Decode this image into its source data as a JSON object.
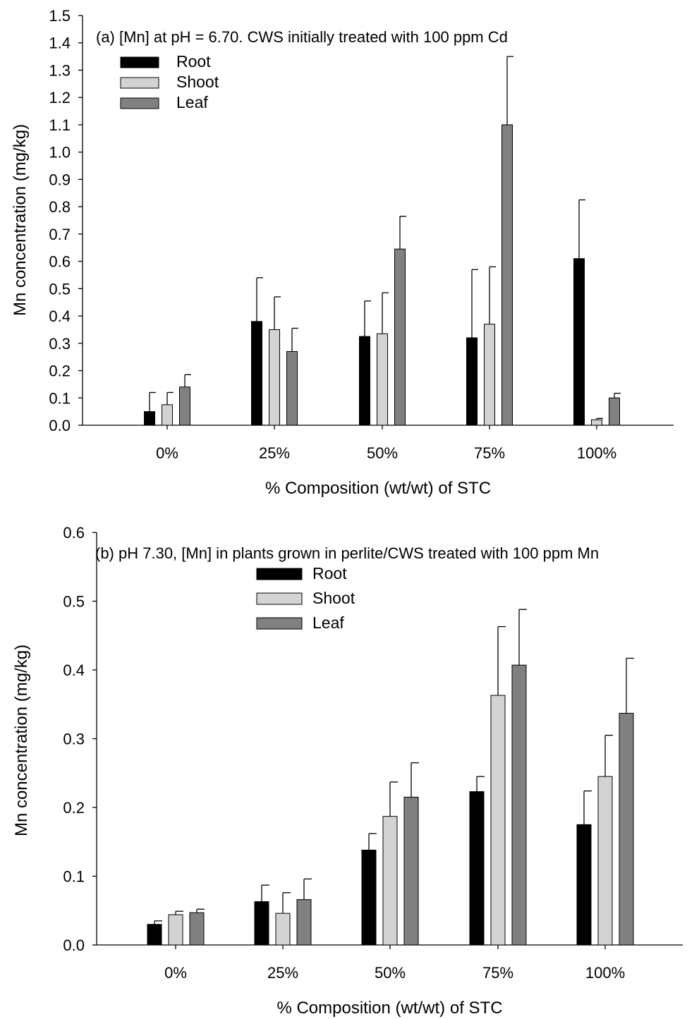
{
  "chart_data": [
    {
      "type": "bar",
      "title": "",
      "annotation": "(a) [Mn] at pH = 6.70. CWS initially treated with 100 ppm Cd",
      "xlabel": "% Composition (wt/wt) of STC",
      "ylabel": "Mn concentration (mg/kg)",
      "categories": [
        "0%",
        "25%",
        "50%",
        "75%",
        "100%"
      ],
      "ylim": [
        0,
        1.5
      ],
      "yticks": [
        "0.0",
        "0.1",
        "0.2",
        "0.3",
        "0.4",
        "0.5",
        "0.6",
        "0.7",
        "0.8",
        "0.9",
        "1.0",
        "1.1",
        "1.2",
        "1.3",
        "1.4",
        "1.5"
      ],
      "grid": false,
      "legend_position": "top-left",
      "series": [
        {
          "name": "Root",
          "color": "#000000",
          "values": [
            0.05,
            0.38,
            0.325,
            0.32,
            0.61
          ],
          "errors": [
            0.07,
            0.16,
            0.13,
            0.25,
            0.215
          ]
        },
        {
          "name": "Shoot",
          "color": "#d3d3d3",
          "values": [
            0.075,
            0.35,
            0.335,
            0.37,
            0.02
          ],
          "errors": [
            0.045,
            0.12,
            0.15,
            0.21,
            0.005
          ]
        },
        {
          "name": "Leaf",
          "color": "#808080",
          "values": [
            0.14,
            0.27,
            0.645,
            1.1,
            0.1
          ],
          "errors": [
            0.045,
            0.085,
            0.12,
            0.25,
            0.017
          ]
        }
      ]
    },
    {
      "type": "bar",
      "title": "",
      "annotation": "(b) pH 7.30, [Mn] in plants grown in perlite/CWS treated with 100 ppm Mn",
      "xlabel": "% Composition (wt/wt) of STC",
      "ylabel": "Mn concentration (mg/kg)",
      "categories": [
        "0%",
        "25%",
        "50%",
        "75%",
        "100%"
      ],
      "ylim": [
        0,
        0.6
      ],
      "yticks": [
        "0.0",
        "0.1",
        "0.2",
        "0.3",
        "0.4",
        "0.5",
        "0.6"
      ],
      "grid": false,
      "legend_position": "top-center",
      "series": [
        {
          "name": "Root",
          "color": "#000000",
          "values": [
            0.03,
            0.063,
            0.138,
            0.223,
            0.175
          ],
          "errors": [
            0.005,
            0.024,
            0.024,
            0.022,
            0.049
          ]
        },
        {
          "name": "Shoot",
          "color": "#d3d3d3",
          "values": [
            0.044,
            0.046,
            0.187,
            0.363,
            0.245
          ],
          "errors": [
            0.005,
            0.03,
            0.05,
            0.1,
            0.06
          ]
        },
        {
          "name": "Leaf",
          "color": "#808080",
          "values": [
            0.047,
            0.066,
            0.215,
            0.407,
            0.337
          ],
          "errors": [
            0.005,
            0.03,
            0.05,
            0.081,
            0.08
          ]
        }
      ]
    }
  ]
}
